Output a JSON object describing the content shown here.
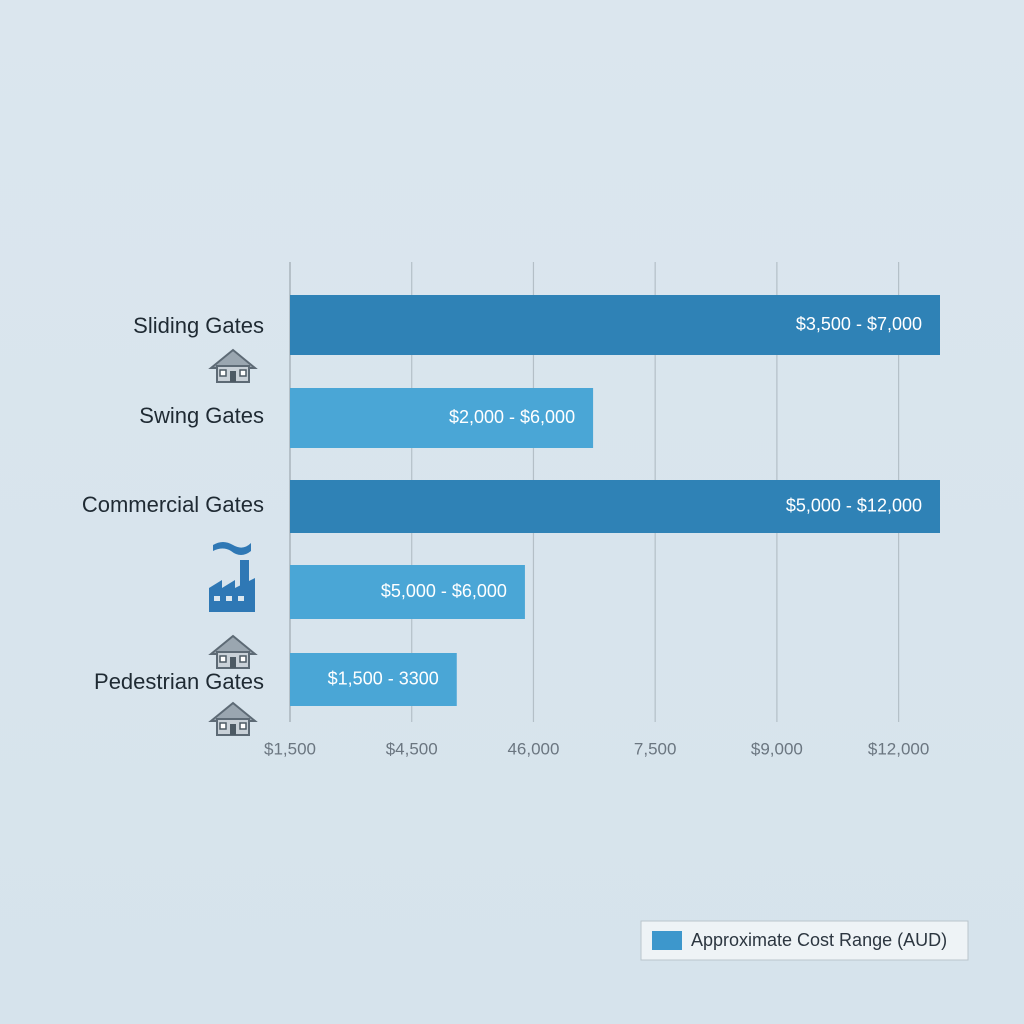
{
  "chart_data": {
    "type": "bar",
    "orientation": "horizontal",
    "categories": [
      "Sliding Gates",
      "Swing Gates",
      "Commercial Gates",
      null,
      "Pedestrian Gates"
    ],
    "values": [
      5.34,
      2.49,
      5.34,
      1.93,
      1.37
    ],
    "value_labels": [
      "$3,500 - $7,000",
      "$2,000 - $6,000",
      "$5,000 - $12,000",
      "$5,000 - $6,000",
      "$1,500 - 3300"
    ],
    "colors": [
      "#2f82b6",
      "#4aa6d6",
      "#2f82b6",
      "#4aa6d6",
      "#4aa6d6"
    ],
    "xlim": [
      0,
      5.34
    ],
    "xticks": [
      {
        "value": 0,
        "label": "$1,500"
      },
      {
        "value": 1,
        "label": "$4,500"
      },
      {
        "value": 2,
        "label": "46,000"
      },
      {
        "value": 3,
        "label": "7,500"
      },
      {
        "value": 4,
        "label": "$9,000"
      },
      {
        "value": 5,
        "label": "$12,000"
      }
    ],
    "grid": true,
    "legend": {
      "name": "Approximate Cost Range (AUD)",
      "color": "#3d97cc",
      "position": "bottom-right"
    }
  }
}
